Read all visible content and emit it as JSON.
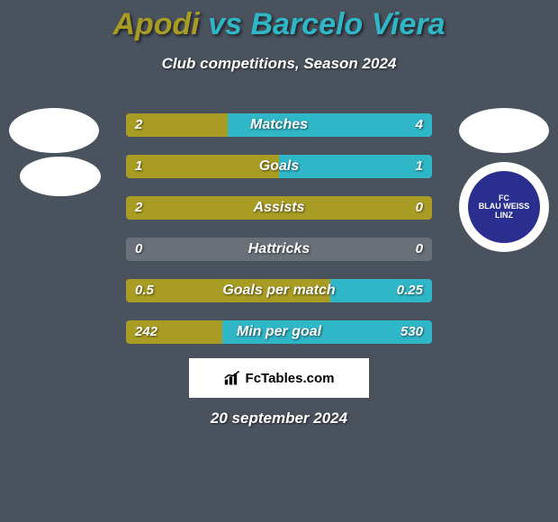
{
  "background_color": "#4a525d",
  "header": {
    "title_left": "Apodi",
    "title_vs": " vs ",
    "title_right": "Barcelo Viera",
    "title_color_left": "#a99c24",
    "title_color_right": "#2fb6c7",
    "subtitle": "Club competitions, Season 2024",
    "subtitle_color": "#ffffff"
  },
  "colors": {
    "left_bar": "#a99c24",
    "right_bar": "#2fb6c7",
    "row_bg": "#6a7078"
  },
  "stats": [
    {
      "label": "Matches",
      "left_value": "2",
      "right_value": "4",
      "left_pct": 33.3
    },
    {
      "label": "Goals",
      "left_value": "1",
      "right_value": "1",
      "left_pct": 50
    },
    {
      "label": "Assists",
      "left_value": "2",
      "right_value": "0",
      "left_pct": 100
    },
    {
      "label": "Hattricks",
      "left_value": "0",
      "right_value": "0",
      "left_pct": 0
    },
    {
      "label": "Goals per match",
      "left_value": "0.5",
      "right_value": "0.25",
      "left_pct": 66.7
    },
    {
      "label": "Min per goal",
      "left_value": "242",
      "right_value": "530",
      "left_pct": 31.4
    }
  ],
  "logos": {
    "right_badge": {
      "bg": "#2a2f8f",
      "lines": [
        "FC",
        "BLAU WEISS",
        "LINZ"
      ]
    }
  },
  "branding": {
    "text": "FcTables.com"
  },
  "date": "20 september 2024"
}
